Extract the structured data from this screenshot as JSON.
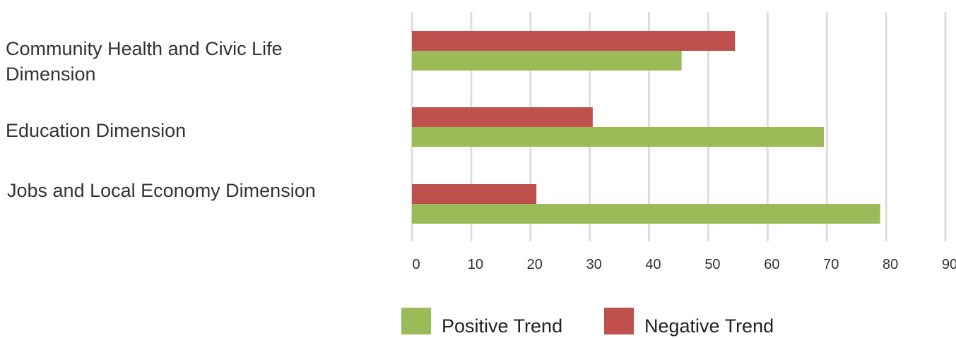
{
  "chart_data": {
    "type": "bar",
    "orientation": "horizontal",
    "categories": [
      [
        "Community Health and Civic Life",
        "Dimension"
      ],
      [
        "Education Dimension"
      ],
      [
        "Jobs and Local Economy Dimension"
      ]
    ],
    "series": [
      {
        "name": "Negative Trend",
        "color": "#c0504d",
        "values": [
          54.5,
          30.5,
          21
        ]
      },
      {
        "name": "Positive Trend",
        "color": "#9bbb59",
        "values": [
          45.5,
          69.5,
          79
        ]
      }
    ],
    "xlim": [
      0,
      90
    ],
    "xticks": [
      "0",
      "10",
      "20",
      "30",
      "40",
      "50",
      "60",
      "70",
      "80",
      "90"
    ],
    "grid": true,
    "legend": {
      "placement": "bottom",
      "items": [
        {
          "label": "Positive Trend",
          "color": "#9bbb59"
        },
        {
          "label": "Negative Trend",
          "color": "#c0504d"
        }
      ]
    }
  }
}
